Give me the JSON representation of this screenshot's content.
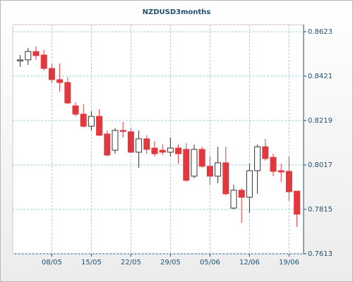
{
  "chart_data": {
    "type": "candlestick",
    "title": "NZDUSD3months",
    "categories": [
      null,
      null,
      null,
      null,
      "08/05",
      null,
      null,
      null,
      null,
      "15/05",
      null,
      null,
      null,
      null,
      "22/05",
      null,
      null,
      null,
      null,
      "29/05",
      null,
      null,
      null,
      null,
      "05/06",
      null,
      null,
      null,
      null,
      "12/06",
      null,
      null,
      null,
      null,
      "19/06",
      null
    ],
    "open": [
      0.8495,
      0.8495,
      0.8533,
      0.8517,
      0.8456,
      0.8405,
      0.8392,
      0.8286,
      0.8248,
      0.8193,
      0.8238,
      0.8158,
      0.8084,
      0.8174,
      0.8168,
      0.8075,
      0.8136,
      0.8094,
      0.8084,
      0.8075,
      0.8094,
      0.8088,
      0.7966,
      0.8088,
      0.8011,
      0.7966,
      0.8027,
      0.7821,
      0.7902,
      0.787,
      0.7991,
      0.81,
      0.8052,
      0.7991,
      0.7988,
      0.7898
    ],
    "high": [
      0.8517,
      0.8549,
      0.8556,
      0.854,
      0.8479,
      0.8479,
      0.8415,
      0.8302,
      0.8293,
      0.8261,
      0.827,
      0.8174,
      0.8184,
      0.8213,
      0.8184,
      0.8174,
      0.8152,
      0.8126,
      0.811,
      0.8142,
      0.811,
      0.8116,
      0.811,
      0.81,
      0.8056,
      0.81,
      0.81,
      0.7927,
      0.7911,
      0.8023,
      0.811,
      0.8136,
      0.8068,
      0.8023,
      0.8056,
      0.7898
    ],
    "low": [
      0.8463,
      0.8472,
      0.8495,
      0.8447,
      0.8389,
      0.835,
      0.8293,
      0.8238,
      0.8187,
      0.8174,
      0.8149,
      0.8056,
      0.8068,
      0.8142,
      0.8072,
      0.8004,
      0.8068,
      0.8056,
      0.8062,
      0.8056,
      0.8023,
      0.794,
      0.7956,
      0.8004,
      0.7927,
      0.7934,
      0.7879,
      0.7815,
      0.7754,
      0.7799,
      0.7886,
      0.8036,
      0.7966,
      0.794,
      0.7854,
      0.7735
    ],
    "close": [
      0.8495,
      0.8533,
      0.8514,
      0.8456,
      0.8405,
      0.8392,
      0.8299,
      0.8248,
      0.8193,
      0.8238,
      0.8152,
      0.8062,
      0.8174,
      0.8171,
      0.8075,
      0.8136,
      0.8088,
      0.8068,
      0.8075,
      0.8094,
      0.8068,
      0.7947,
      0.8088,
      0.8011,
      0.7966,
      0.8027,
      0.7886,
      0.7902,
      0.787,
      0.7991,
      0.81,
      0.8046,
      0.7988,
      0.7985,
      0.7895,
      0.7793
    ],
    "up_color": "#ffffff",
    "down_color": "#e0383e",
    "ylim": [
      0.7613,
      0.8655
    ],
    "yticks": [
      0.7613,
      0.7815,
      0.8017,
      0.8219,
      0.8421,
      0.8623
    ],
    "grid": true
  }
}
